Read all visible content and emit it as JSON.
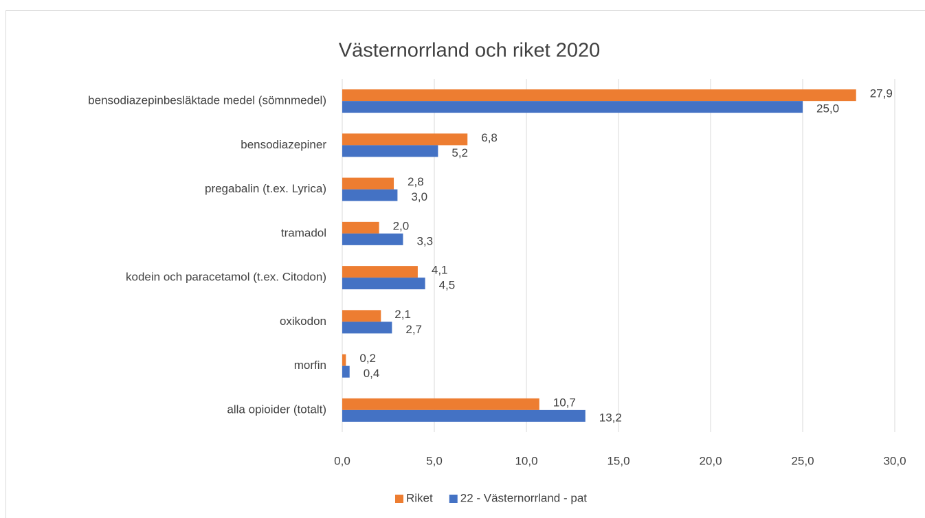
{
  "chart_data": {
    "type": "bar",
    "orientation": "horizontal",
    "title": "Västernorrland och riket 2020",
    "categories": [
      "bensodiazepinbesläktade medel (sömnmedel)",
      "bensodiazepiner",
      "pregabalin (t.ex. Lyrica)",
      "tramadol",
      "kodein och paracetamol (t.ex. Citodon)",
      "oxikodon",
      "morfin",
      "alla opioider (totalt)"
    ],
    "series": [
      {
        "name": "Riket",
        "color": "#ed7d31",
        "values": [
          27.9,
          6.8,
          2.8,
          2.0,
          4.1,
          2.1,
          0.2,
          10.7
        ],
        "value_labels": [
          "27,9",
          "6,8",
          "2,8",
          "2,0",
          "4,1",
          "2,1",
          "0,2",
          "10,7"
        ]
      },
      {
        "name": "22 - Västernorrland - pat",
        "color": "#4472c4",
        "values": [
          25.0,
          5.2,
          3.0,
          3.3,
          4.5,
          2.7,
          0.4,
          13.2
        ],
        "value_labels": [
          "25,0",
          "5,2",
          "3,0",
          "3,3",
          "4,5",
          "2,7",
          "0,4",
          "13,2"
        ]
      }
    ],
    "xlim": [
      0,
      30
    ],
    "xticks": [
      {
        "value": 0,
        "label": "0,0"
      },
      {
        "value": 5,
        "label": "5,0"
      },
      {
        "value": 10,
        "label": "10,0"
      },
      {
        "value": 15,
        "label": "15,0"
      },
      {
        "value": 20,
        "label": "20,0"
      },
      {
        "value": 25,
        "label": "25,0"
      },
      {
        "value": 30,
        "label": "30,0"
      }
    ],
    "grid": true,
    "legend": "bottom"
  }
}
